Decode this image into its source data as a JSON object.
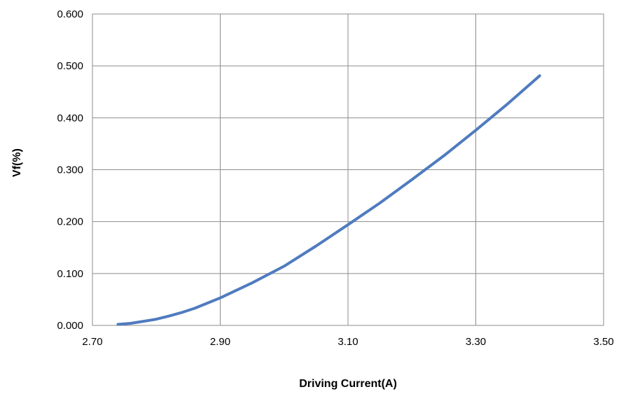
{
  "chart_data": {
    "type": "line",
    "title": "",
    "xlabel": "Driving Current(A)",
    "ylabel": "Vf(%)",
    "xlim": [
      2.7,
      3.5
    ],
    "ylim": [
      0.0,
      0.6
    ],
    "x_ticks": [
      "2.70",
      "2.90",
      "3.10",
      "3.30",
      "3.50"
    ],
    "y_ticks": [
      "0.000",
      "0.100",
      "0.200",
      "0.300",
      "0.400",
      "0.500",
      "0.600"
    ],
    "grid": true,
    "legend": "none",
    "series": [
      {
        "color": "#4f7bbf",
        "x": [
          2.74,
          2.76,
          2.78,
          2.8,
          2.82,
          2.84,
          2.86,
          2.88,
          2.9,
          2.95,
          3.0,
          3.05,
          3.1,
          3.15,
          3.2,
          3.25,
          3.3,
          3.35,
          3.4
        ],
        "y": [
          0.002,
          0.004,
          0.008,
          0.012,
          0.018,
          0.025,
          0.033,
          0.043,
          0.053,
          0.082,
          0.114,
          0.153,
          0.194,
          0.236,
          0.281,
          0.327,
          0.376,
          0.427,
          0.481
        ]
      }
    ]
  }
}
